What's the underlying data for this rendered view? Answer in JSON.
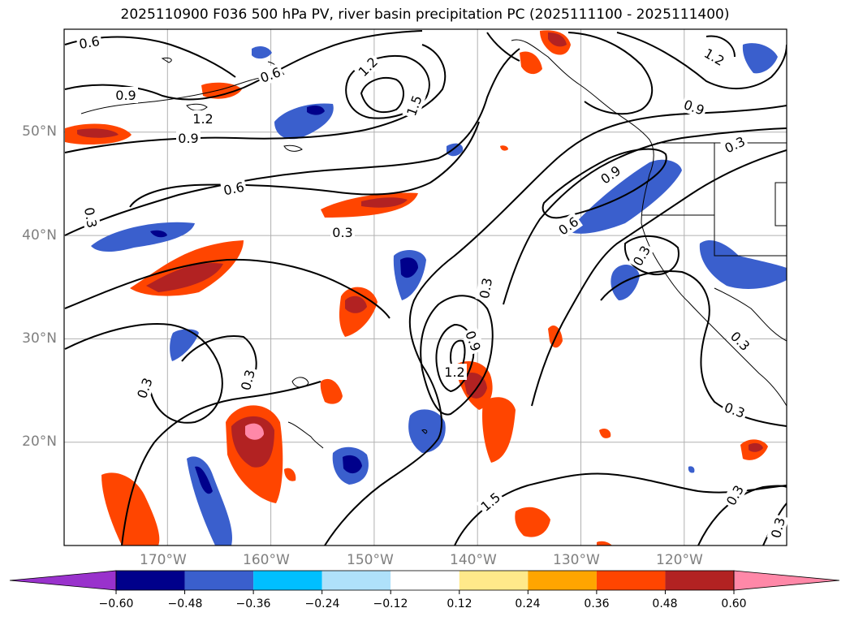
{
  "title": "2025110900 F036 500 hPa PV, river basin precipitation PC (2025111100 - 2025111400)",
  "map": {
    "lat_labels": [
      {
        "text": "50°N",
        "lat": 50
      },
      {
        "text": "40°N",
        "lat": 40
      },
      {
        "text": "30°N",
        "lat": 30
      },
      {
        "text": "20°N",
        "lat": 20
      }
    ],
    "lon_labels": [
      {
        "text": "170°W",
        "lon": -170
      },
      {
        "text": "160°W",
        "lon": -160
      },
      {
        "text": "150°W",
        "lon": -150
      },
      {
        "text": "140°W",
        "lon": -140
      },
      {
        "text": "130°W",
        "lon": -130
      },
      {
        "text": "120°W",
        "lon": -120
      }
    ],
    "pv_contour_labels": [
      "0.6",
      "0.6",
      "0.9",
      "1.2",
      "0.9",
      "0.6",
      "0.3",
      "0.3",
      "1.2",
      "1.5",
      "1.2",
      "0.9",
      "0.3",
      "0.9",
      "0.6",
      "0.3",
      "0.3",
      "0.3",
      "0.3",
      "0.9",
      "1.2",
      "1.5",
      "0.3",
      "0.3",
      "0.3",
      "0.3"
    ],
    "colors": {
      "contour": "#000000",
      "grid": "#b0b0b0",
      "coast": "#000000"
    }
  },
  "colorbar": {
    "ticks": [
      "−0.60",
      "−0.48",
      "−0.36",
      "−0.24",
      "−0.12",
      "0.12",
      "0.24",
      "0.36",
      "0.48",
      "0.60"
    ],
    "colors": [
      "#9932cc",
      "#00008b",
      "#3a5fcd",
      "#00bfff",
      "#afe1fa",
      "#ffffff",
      "#ffe98a",
      "#ffa500",
      "#ff4500",
      "#b22222",
      "#ff88a8"
    ]
  }
}
